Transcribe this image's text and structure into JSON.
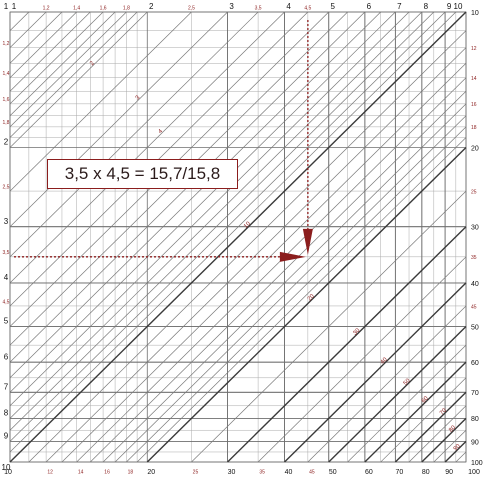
{
  "colors": {
    "grid_line": "#a9a9a9",
    "grid_line_major": "#6e6e6e",
    "diagonal": "#3a3a3a",
    "diagonal_thin": "#7a7a7a",
    "accent": "#8b1d1d",
    "label_major": "#111111"
  },
  "axes": {
    "top_major": [
      "1",
      "2",
      "3",
      "4",
      "5",
      "6",
      "7",
      "8",
      "9",
      "10"
    ],
    "top_minor": [
      "1,2",
      "1,4",
      "1,6",
      "1,8",
      "2,5",
      "3,5",
      "4,5"
    ],
    "left_major": [
      "1",
      "2",
      "3",
      "4",
      "5",
      "6",
      "7",
      "8",
      "9",
      "10"
    ],
    "left_minor": [
      "1,2",
      "1,4",
      "1,6",
      "1,8",
      "2,5",
      "3,5",
      "4,5"
    ],
    "right": [
      "10",
      "12",
      "14",
      "16",
      "18",
      "20",
      "25",
      "30",
      "35",
      "40",
      "45",
      "50",
      "60",
      "70",
      "80",
      "90",
      "100"
    ],
    "bottom": [
      "10",
      "12",
      "14",
      "16",
      "18",
      "20",
      "25",
      "30",
      "35",
      "40",
      "45",
      "50",
      "60",
      "70",
      "80",
      "90",
      "100"
    ]
  },
  "diagonal_labels": [
    "2",
    "3",
    "4",
    "10",
    "20",
    "30",
    "40",
    "50",
    "60",
    "70",
    "80",
    "90"
  ],
  "callout": {
    "text": "3,5 x 4,5 = 15,7/15,8"
  },
  "example": {
    "x": 4.5,
    "y": 3.5
  }
}
